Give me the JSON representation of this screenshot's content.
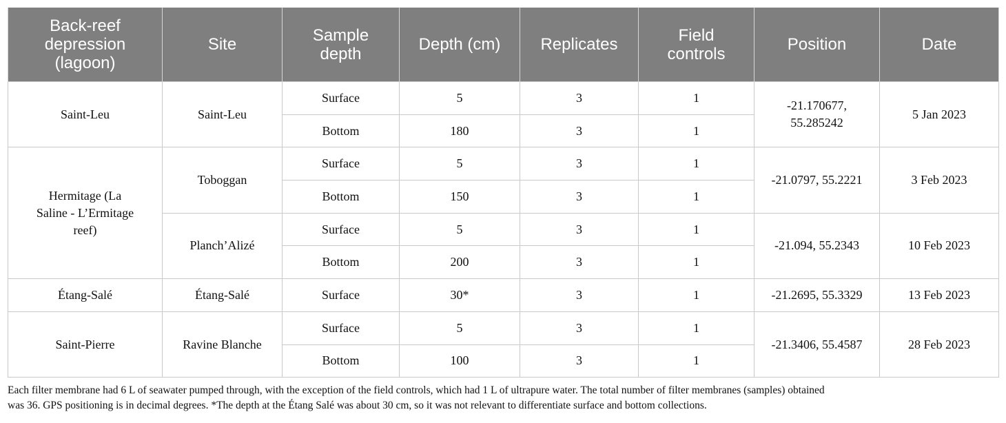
{
  "table": {
    "headers": [
      "Back-reef depression (lagoon)",
      "Site",
      "Sample depth",
      "Depth (cm)",
      "Replicates",
      "Field controls",
      "Position",
      "Date"
    ],
    "groups": [
      {
        "lagoon": "Saint-Leu",
        "sites": [
          {
            "site": "Saint-Leu",
            "position": "-21.170677, 55.285242",
            "date": "5 Jan 2023",
            "samples": [
              {
                "sample_depth": "Surface",
                "depth_cm": "5",
                "replicates": "3",
                "field_controls": "1"
              },
              {
                "sample_depth": "Bottom",
                "depth_cm": "180",
                "replicates": "3",
                "field_controls": "1"
              }
            ]
          }
        ]
      },
      {
        "lagoon": "Hermitage (La Saline - L’Ermitage reef)",
        "sites": [
          {
            "site": "Toboggan",
            "position": "-21.0797, 55.2221",
            "date": "3 Feb 2023",
            "samples": [
              {
                "sample_depth": "Surface",
                "depth_cm": "5",
                "replicates": "3",
                "field_controls": "1"
              },
              {
                "sample_depth": "Bottom",
                "depth_cm": "150",
                "replicates": "3",
                "field_controls": "1"
              }
            ]
          },
          {
            "site": "Planch’Alizé",
            "position": "-21.094, 55.2343",
            "date": "10 Feb 2023",
            "samples": [
              {
                "sample_depth": "Surface",
                "depth_cm": "5",
                "replicates": "3",
                "field_controls": "1"
              },
              {
                "sample_depth": "Bottom",
                "depth_cm": "200",
                "replicates": "3",
                "field_controls": "1"
              }
            ]
          }
        ]
      },
      {
        "lagoon": "Étang-Salé",
        "sites": [
          {
            "site": "Étang-Salé",
            "position": "-21.2695, 55.3329",
            "date": "13 Feb 2023",
            "samples": [
              {
                "sample_depth": "Surface",
                "depth_cm": "30*",
                "replicates": "3",
                "field_controls": "1"
              }
            ]
          }
        ]
      },
      {
        "lagoon": "Saint-Pierre",
        "sites": [
          {
            "site": "Ravine Blanche",
            "position": "-21.3406, 55.4587",
            "date": "28 Feb 2023",
            "samples": [
              {
                "sample_depth": "Surface",
                "depth_cm": "5",
                "replicates": "3",
                "field_controls": "1"
              },
              {
                "sample_depth": "Bottom",
                "depth_cm": "100",
                "replicates": "3",
                "field_controls": "1"
              }
            ]
          }
        ]
      }
    ]
  },
  "footnote": {
    "line1": "Each filter membrane had 6 L of seawater pumped through, with the exception of the field controls, which had 1 L of ultrapure water. The total number of filter membranes (samples) obtained",
    "line2": "was 36. GPS positioning is in decimal degrees. *The depth at the Étang Salé was about 30 cm, so it was not relevant to differentiate surface and bottom collections."
  },
  "colors": {
    "header_bg": "#7f7f7f",
    "header_text": "#ffffff",
    "grid": "#c9c9c9"
  }
}
